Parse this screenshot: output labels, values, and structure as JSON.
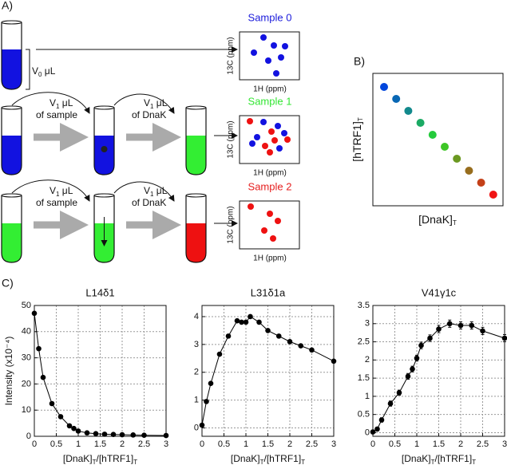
{
  "panel_labels": [
    "A)",
    "B)",
    "C)"
  ],
  "panel_a": {
    "volume_label": [
      "V",
      "0",
      " μL"
    ],
    "mixing_rows": [
      {
        "steps": [
          {
            "amount": [
              "V",
              "1",
              " μL"
            ],
            "source": "of sample"
          },
          {
            "amount": [
              "V",
              "1",
              " μL"
            ],
            "source": "of DnaK"
          }
        ]
      },
      {
        "steps": [
          {
            "amount": [
              "V",
              "1",
              " μL"
            ],
            "source": "of sample"
          },
          {
            "amount": [
              "V",
              "1",
              " μL"
            ],
            "source": "of DnaK"
          }
        ]
      }
    ],
    "samples": [
      {
        "title": "Sample 0",
        "color": "#1a1adb",
        "y_label": "13C (ppm)",
        "x_label": "1H (ppm)"
      },
      {
        "title": "Sample 1",
        "color": "#33e633",
        "y_label": "13C (ppm)",
        "x_label": "1H (ppm)"
      },
      {
        "title": "Sample 2",
        "color": "#e62020",
        "y_label": "13C (ppm)",
        "x_label": "1H (ppm)"
      }
    ]
  },
  "panel_b": {
    "x_label": [
      "[DnaK]",
      "T"
    ],
    "y_label": [
      "[hTRF1]",
      "T"
    ]
  },
  "chart_data": [
    {
      "type": "line",
      "title": "L14δ1",
      "y_label": "Intensity (x10⁻⁴)",
      "x_label": [
        "[DnaK]",
        "T",
        "/[hTRF1]",
        "T"
      ],
      "x": [
        0,
        0.1,
        0.2,
        0.4,
        0.6,
        0.8,
        0.9,
        1.0,
        1.2,
        1.4,
        1.6,
        1.8,
        2.0,
        2.25,
        2.5,
        3.0
      ],
      "values": [
        47,
        33.5,
        22.5,
        12.5,
        7.5,
        4,
        3,
        2,
        1.3,
        1,
        0.8,
        0.7,
        0.6,
        0.5,
        0.4,
        0.3
      ],
      "color": "#000000",
      "xlim": [
        0,
        3
      ],
      "xticks": [
        0,
        0.5,
        1,
        1.5,
        2,
        2.5,
        3
      ],
      "ylim": [
        0,
        50
      ],
      "yticks": [
        0,
        10,
        20,
        30,
        40,
        50
      ],
      "grid": true
    },
    {
      "type": "line",
      "title": "L31δ1a",
      "x_label": [
        "[DnaK]",
        "T",
        "/[hTRF1]",
        "T"
      ],
      "x": [
        0,
        0.1,
        0.2,
        0.4,
        0.6,
        0.8,
        0.9,
        1.0,
        1.1,
        1.3,
        1.5,
        1.75,
        2.0,
        2.25,
        2.5,
        3.0
      ],
      "values": [
        0.1,
        0.95,
        1.6,
        2.65,
        3.3,
        3.85,
        3.8,
        3.8,
        4.0,
        3.8,
        3.5,
        3.3,
        3.1,
        2.95,
        2.8,
        2.4
      ],
      "color": "#000000",
      "xlim": [
        0,
        3
      ],
      "xticks": [
        0,
        0.5,
        1,
        1.5,
        2,
        2.5,
        3
      ],
      "ylim": [
        -0.3,
        4.4
      ],
      "yticks": [
        0,
        1,
        2,
        3,
        4
      ],
      "grid": true
    },
    {
      "type": "line",
      "title": "V41γ1c",
      "x_label": [
        "[DnaK]",
        "T",
        "/[hTRF1]",
        "T"
      ],
      "x": [
        0,
        0.1,
        0.2,
        0.4,
        0.6,
        0.8,
        0.9,
        1.0,
        1.1,
        1.3,
        1.5,
        1.75,
        2.0,
        2.25,
        2.5,
        3.0
      ],
      "values": [
        0.02,
        0.1,
        0.35,
        0.8,
        1.1,
        1.55,
        1.75,
        2.05,
        2.4,
        2.6,
        2.85,
        3.0,
        2.95,
        2.95,
        2.8,
        2.6
      ],
      "errors": [
        0.05,
        0.05,
        0.06,
        0.07,
        0.07,
        0.08,
        0.08,
        0.08,
        0.09,
        0.09,
        0.1,
        0.1,
        0.1,
        0.1,
        0.1,
        0.1
      ],
      "color": "#000000",
      "xlim": [
        0,
        3
      ],
      "xticks": [
        0,
        0.5,
        1,
        1.5,
        2,
        2.5,
        3
      ],
      "ylim": [
        -0.1,
        3.5
      ],
      "yticks": [
        0,
        0.5,
        1,
        1.5,
        2,
        2.5,
        3,
        3.5
      ],
      "grid": true
    }
  ]
}
